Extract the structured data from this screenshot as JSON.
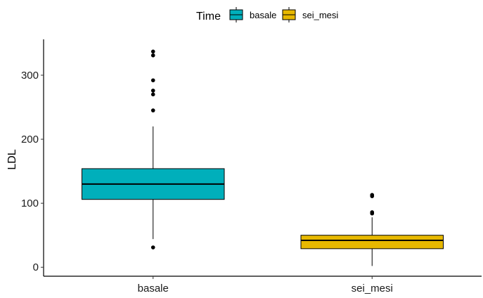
{
  "chart_data": {
    "type": "boxplot",
    "ylabel": "LDL",
    "xlabel": "",
    "ylim": [
      -14,
      356
    ],
    "yticks": [
      0,
      100,
      200,
      300
    ],
    "legend": {
      "title": "Time",
      "position": "top",
      "entries": [
        "basale",
        "sei_mesi"
      ]
    },
    "categories": [
      "basale",
      "sei_mesi"
    ],
    "series": [
      {
        "category": "basale",
        "color": "#00AFBB",
        "q1": 106,
        "median": 130,
        "q3": 154,
        "whisker_low": 44,
        "whisker_high": 220,
        "outliers": [
          337,
          331,
          292,
          276,
          270,
          245,
          31
        ]
      },
      {
        "category": "sei_mesi",
        "color": "#E7B800",
        "q1": 29,
        "median": 42,
        "q3": 50,
        "whisker_low": 2,
        "whisker_high": 78,
        "outliers": [
          113,
          111,
          86,
          84
        ]
      }
    ],
    "grid": false
  }
}
